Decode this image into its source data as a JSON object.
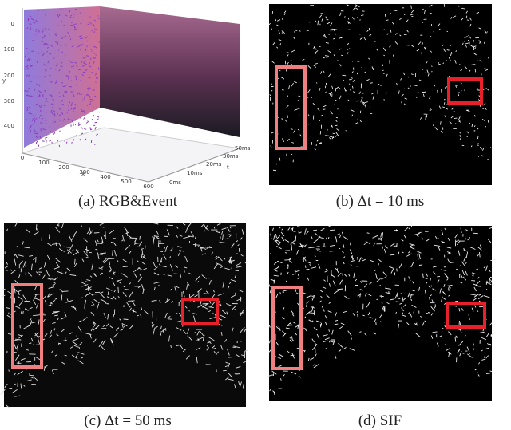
{
  "panels": [
    {
      "caption": "(a) RGB&Event",
      "plot": {
        "y_label": "y",
        "y_ticks": [
          "0",
          "100",
          "200",
          "300",
          "400"
        ],
        "x_label": "x",
        "x_ticks": [
          "0",
          "100",
          "200",
          "300",
          "400",
          "500",
          "600"
        ],
        "t_label": "t",
        "t_ticks": [
          "0ms",
          "10ms",
          "20ms",
          "30ms",
          "50ms"
        ]
      }
    },
    {
      "caption": "(b) Δt = 10 ms"
    },
    {
      "caption": "(c) Δt = 50 ms"
    },
    {
      "caption": "(d) SIF"
    }
  ]
}
